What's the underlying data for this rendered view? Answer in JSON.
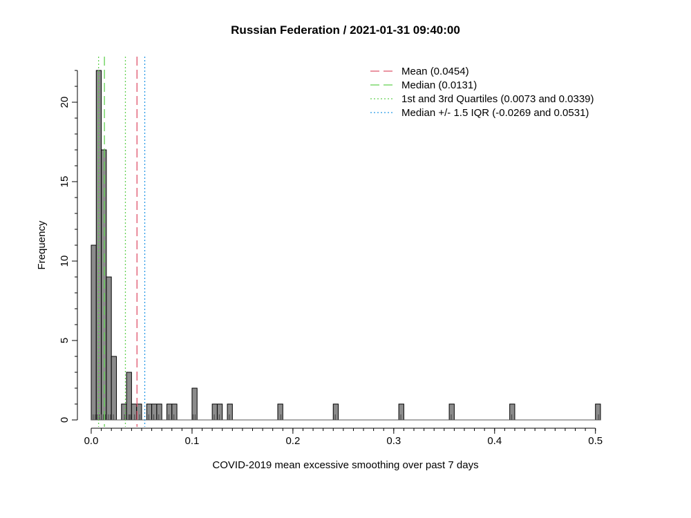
{
  "chart_data": {
    "type": "histogram",
    "title": "Russian Federation / 2021-01-31 09:40:00",
    "xlabel": "COVID-2019 mean excessive smoothing over past 7 days",
    "ylabel": "Frequency",
    "xlim": [
      0,
      0.505
    ],
    "ylim": [
      0,
      22
    ],
    "bin_width": 0.005,
    "x_ticks": [
      0.0,
      0.1,
      0.2,
      0.3,
      0.4,
      0.5
    ],
    "x_tick_labels": [
      "0.0",
      "0.1",
      "0.2",
      "0.3",
      "0.4",
      "0.5"
    ],
    "y_ticks": [
      0,
      5,
      10,
      15,
      20
    ],
    "y_tick_labels": [
      "0",
      "5",
      "10",
      "15",
      "20"
    ],
    "bins": [
      {
        "x0": 0.0,
        "x1": 0.005,
        "count": 11
      },
      {
        "x0": 0.005,
        "x1": 0.01,
        "count": 22
      },
      {
        "x0": 0.01,
        "x1": 0.015,
        "count": 17
      },
      {
        "x0": 0.015,
        "x1": 0.02,
        "count": 9
      },
      {
        "x0": 0.02,
        "x1": 0.025,
        "count": 4
      },
      {
        "x0": 0.03,
        "x1": 0.035,
        "count": 1
      },
      {
        "x0": 0.035,
        "x1": 0.04,
        "count": 3
      },
      {
        "x0": 0.04,
        "x1": 0.045,
        "count": 1
      },
      {
        "x0": 0.045,
        "x1": 0.05,
        "count": 1
      },
      {
        "x0": 0.055,
        "x1": 0.06,
        "count": 1
      },
      {
        "x0": 0.06,
        "x1": 0.065,
        "count": 1
      },
      {
        "x0": 0.065,
        "x1": 0.07,
        "count": 1
      },
      {
        "x0": 0.075,
        "x1": 0.08,
        "count": 1
      },
      {
        "x0": 0.08,
        "x1": 0.085,
        "count": 1
      },
      {
        "x0": 0.1,
        "x1": 0.105,
        "count": 2
      },
      {
        "x0": 0.12,
        "x1": 0.125,
        "count": 1
      },
      {
        "x0": 0.125,
        "x1": 0.13,
        "count": 1
      },
      {
        "x0": 0.135,
        "x1": 0.14,
        "count": 1
      },
      {
        "x0": 0.185,
        "x1": 0.19,
        "count": 1
      },
      {
        "x0": 0.24,
        "x1": 0.245,
        "count": 1
      },
      {
        "x0": 0.305,
        "x1": 0.31,
        "count": 1
      },
      {
        "x0": 0.355,
        "x1": 0.36,
        "count": 1
      },
      {
        "x0": 0.415,
        "x1": 0.42,
        "count": 1
      },
      {
        "x0": 0.5,
        "x1": 0.505,
        "count": 1
      }
    ],
    "rug": [
      0.002,
      0.004,
      0.006,
      0.008,
      0.01,
      0.012,
      0.014,
      0.017,
      0.019,
      0.022,
      0.033,
      0.037,
      0.038,
      0.039,
      0.043,
      0.048,
      0.057,
      0.062,
      0.067,
      0.077,
      0.082,
      0.101,
      0.103,
      0.122,
      0.127,
      0.137,
      0.188,
      0.242,
      0.307,
      0.357,
      0.417,
      0.503
    ],
    "reference_lines": [
      {
        "name": "Mean (0.0454)",
        "values": [
          0.0454
        ],
        "color": "#DF536B",
        "style": "dashed-long"
      },
      {
        "name": "Median (0.0131)",
        "values": [
          0.0131
        ],
        "color": "#61D04F",
        "style": "dashed-long"
      },
      {
        "name": "1st and 3rd Quartiles (0.0073 and 0.0339)",
        "values": [
          0.0073,
          0.0339
        ],
        "color": "#61D04F",
        "style": "dotted"
      },
      {
        "name": "Median +/- 1.5 IQR (-0.0269 and 0.0531)",
        "values": [
          -0.0269,
          0.0531
        ],
        "color": "#2297E6",
        "style": "dotted"
      }
    ],
    "bar_fill": "#8c8c8c",
    "legend_position": "top-right",
    "grid": false
  }
}
